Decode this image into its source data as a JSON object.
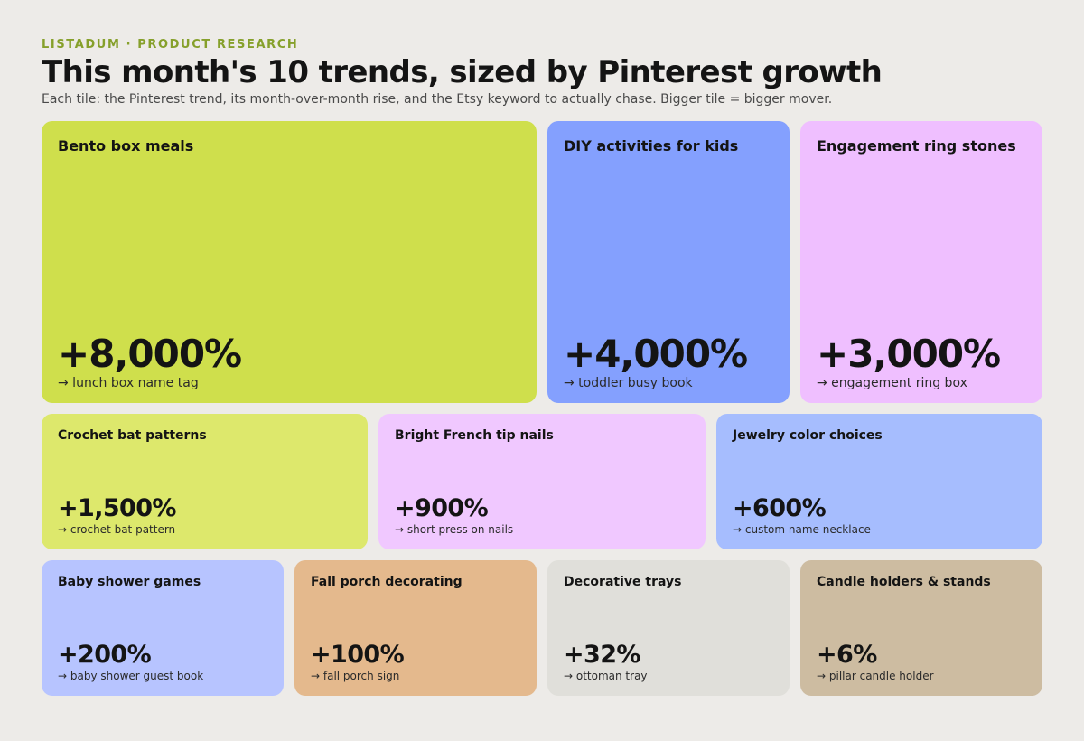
{
  "header": {
    "eyebrow": "LISTADUM · PRODUCT RESEARCH",
    "title": "This month's 10 trends, sized by Pinterest growth",
    "subtitle": "Each tile: the Pinterest trend, its month-over-month rise, and the Etsy keyword to actually chase. Bigger tile = bigger mover."
  },
  "chart_data": {
    "type": "treemap",
    "value_unit": "% month-over-month Pinterest growth",
    "items": [
      {
        "name": "Bento box meals",
        "growth": 8000,
        "growth_label": "+8,000%",
        "keyword": "→ lunch box name tag",
        "color": "#cfdf4c"
      },
      {
        "name": "DIY activities for kids",
        "growth": 4000,
        "growth_label": "+4,000%",
        "keyword": "→ toddler busy book",
        "color": "#84a0fe"
      },
      {
        "name": "Engagement ring stones",
        "growth": 3000,
        "growth_label": "+3,000%",
        "keyword": "→ engagement ring box",
        "color": "#efbfff"
      },
      {
        "name": "Crochet bat patterns",
        "growth": 1500,
        "growth_label": "+1,500%",
        "keyword": "→ crochet bat pattern",
        "color": "#dde86c"
      },
      {
        "name": "Bright French tip nails",
        "growth": 900,
        "growth_label": "+900%",
        "keyword": "→ short press on nails",
        "color": "#f0c8ff"
      },
      {
        "name": "Jewelry color choices",
        "growth": 600,
        "growth_label": "+600%",
        "keyword": "→ custom name necklace",
        "color": "#a6bdfe"
      },
      {
        "name": "Baby shower games",
        "growth": 200,
        "growth_label": "+200%",
        "keyword": "→ baby shower guest book",
        "color": "#b7c4ff"
      },
      {
        "name": "Fall porch decorating",
        "growth": 100,
        "growth_label": "+100%",
        "keyword": "→ fall porch sign",
        "color": "#e4b98d"
      },
      {
        "name": "Decorative trays",
        "growth": 32,
        "growth_label": "+32%",
        "keyword": "→ ottoman tray",
        "color": "#e0dfda"
      },
      {
        "name": "Candle holders & stands",
        "growth": 6,
        "growth_label": "+6%",
        "keyword": "→ pillar candle holder",
        "color": "#cdbca1"
      }
    ]
  }
}
